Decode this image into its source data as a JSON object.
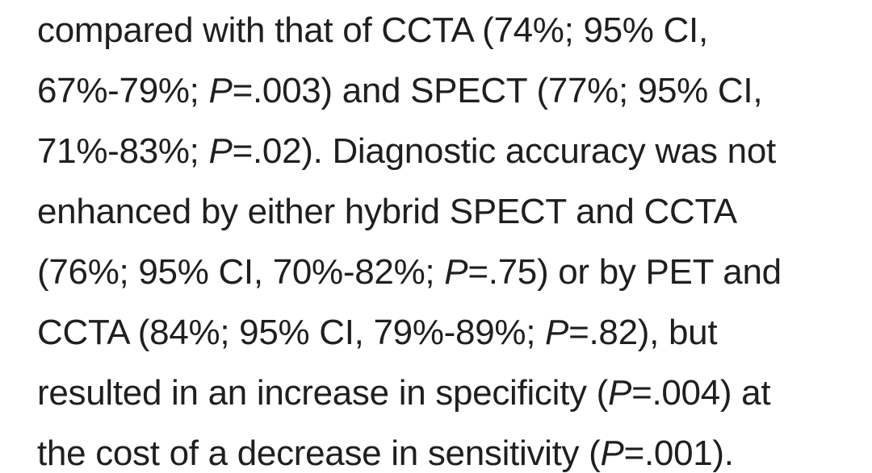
{
  "paragraph": {
    "lines": [
      [
        {
          "t": "compared with that of CCTA (74%; 95% CI,"
        }
      ],
      [
        {
          "t": "67%-79%; "
        },
        {
          "t": "P",
          "i": true
        },
        {
          "t": "=.003) and SPECT (77%; 95% CI,"
        }
      ],
      [
        {
          "t": "71%-83%; "
        },
        {
          "t": "P",
          "i": true
        },
        {
          "t": "=.02). Diagnostic accuracy was not"
        }
      ],
      [
        {
          "t": "enhanced by either hybrid SPECT and CCTA"
        }
      ],
      [
        {
          "t": "(76%; 95% CI, 70%-82%; "
        },
        {
          "t": "P",
          "i": true
        },
        {
          "t": "=.75) or by PET and"
        }
      ],
      [
        {
          "t": "CCTA (84%; 95% CI, 79%-89%; "
        },
        {
          "t": "P",
          "i": true
        },
        {
          "t": "=.82), but"
        }
      ],
      [
        {
          "t": "resulted in an increase in specificity ("
        },
        {
          "t": "P",
          "i": true
        },
        {
          "t": "=.004) at"
        }
      ],
      [
        {
          "t": "the cost of a decrease in sensitivity ("
        },
        {
          "t": "P",
          "i": true
        },
        {
          "t": "=.001)."
        }
      ]
    ]
  }
}
